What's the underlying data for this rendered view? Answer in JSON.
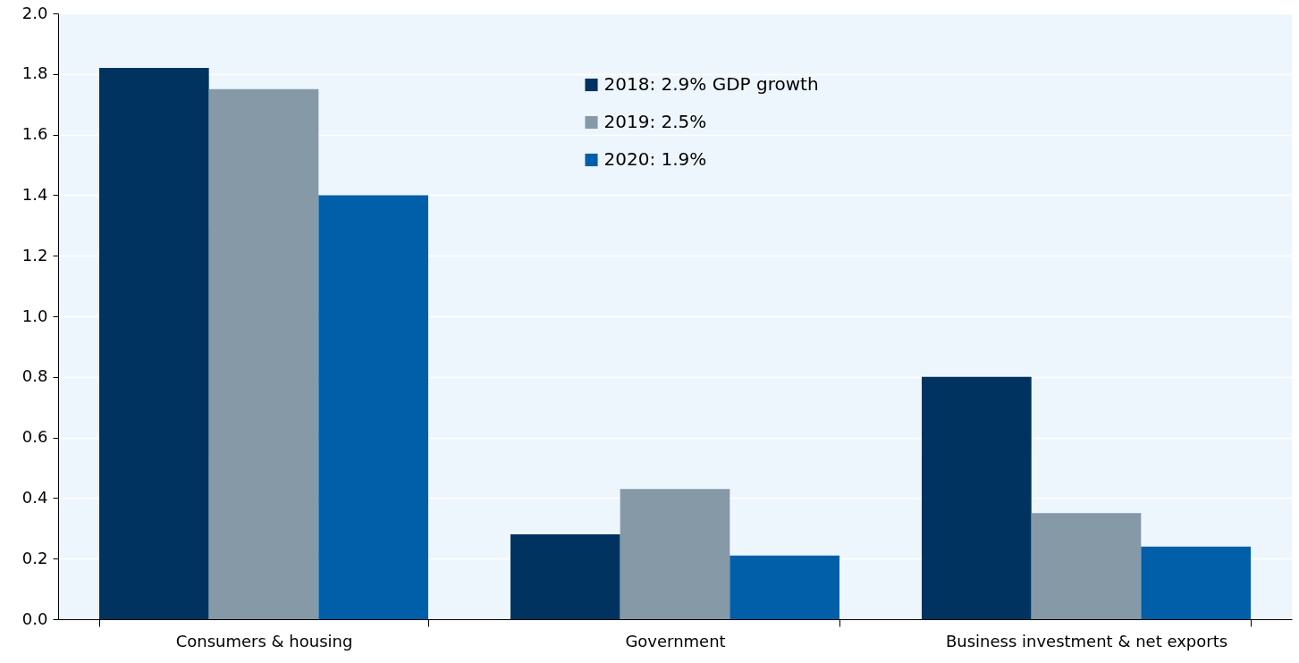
{
  "chart_data": {
    "type": "bar",
    "categories": [
      "Consumers & housing",
      "Government",
      "Business investment & net exports"
    ],
    "series": [
      {
        "name": "2018: 2.9% GDP growth",
        "color": "#00335f",
        "values": [
          1.82,
          0.28,
          0.8
        ]
      },
      {
        "name": "2019: 2.5%",
        "color": "#8599a6",
        "values": [
          1.75,
          0.43,
          0.35
        ]
      },
      {
        "name": "2020: 1.9%",
        "color": "#005fa8",
        "values": [
          1.4,
          0.21,
          0.24
        ]
      }
    ],
    "ylim": [
      0,
      2.0
    ],
    "yticks": [
      {
        "value": 0,
        "label": "0.0"
      },
      0.2,
      0.4,
      0.6,
      0.8,
      {
        "value": 1,
        "label": "1.0"
      },
      1.2,
      1.4,
      1.6,
      1.8,
      {
        "value": 2,
        "label": "2.0"
      }
    ],
    "grid": "y",
    "legend": "top"
  }
}
